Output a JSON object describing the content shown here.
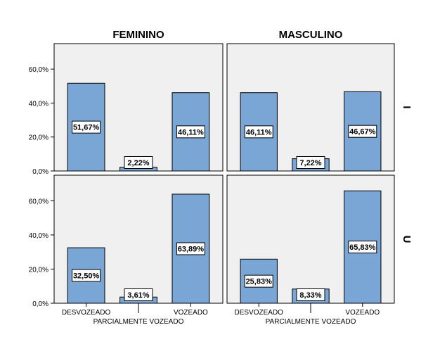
{
  "chart_data": {
    "type": "bar",
    "categories": [
      "DESVOZEADO",
      "PARCIALMENTE VOZEADO",
      "VOZEADO"
    ],
    "column_labels": [
      "FEMININO",
      "MASCULINO"
    ],
    "row_labels": [
      "I",
      "U"
    ],
    "ylim": [
      0,
      75
    ],
    "yticks": [
      "0,0%",
      "20,0%",
      "40,0%",
      "60,0%"
    ],
    "ytick_values": [
      0,
      20,
      40,
      60
    ],
    "panels": [
      {
        "column": "FEMININO",
        "row": "I",
        "values": [
          51.67,
          2.22,
          46.11
        ],
        "labels": [
          "51,67%",
          "2,22%",
          "46,11%"
        ]
      },
      {
        "column": "MASCULINO",
        "row": "I",
        "values": [
          46.11,
          7.22,
          46.67
        ],
        "labels": [
          "46,11%",
          "7,22%",
          "46,67%"
        ]
      },
      {
        "column": "FEMININO",
        "row": "U",
        "values": [
          32.5,
          3.61,
          63.89
        ],
        "labels": [
          "32,50%",
          "3,61%",
          "63,89%"
        ]
      },
      {
        "column": "MASCULINO",
        "row": "U",
        "values": [
          25.83,
          8.33,
          65.83
        ],
        "labels": [
          "25,83%",
          "8,33%",
          "65,83%"
        ]
      }
    ],
    "grid": false,
    "colors": {
      "bar": "#7aa6d6",
      "bar_stroke": "#000000",
      "panel_bg": "#f0f0f0",
      "label_bg": "#ffffff"
    }
  }
}
